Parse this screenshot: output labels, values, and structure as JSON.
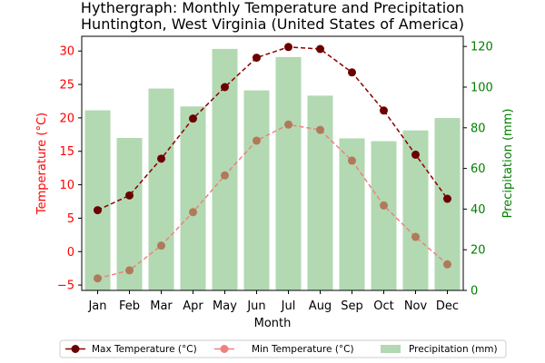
{
  "chart_data": {
    "type": "bar+line",
    "title_line1": "Hythergraph: Monthly Temperature and Precipitation",
    "title_line2": "Huntington, West Virginia (United States of America)",
    "xlabel": "Month",
    "ylabel_left": "Temperature (°C)",
    "ylabel_right": "Precipitation (mm)",
    "categories": [
      "Jan",
      "Feb",
      "Mar",
      "Apr",
      "May",
      "Jun",
      "Jul",
      "Aug",
      "Sep",
      "Oct",
      "Nov",
      "Dec"
    ],
    "ylim_left": [
      -5.8,
      32.2
    ],
    "ylim_right": [
      0,
      125
    ],
    "yticks_left": [
      -5,
      0,
      5,
      10,
      15,
      20,
      25,
      30
    ],
    "yticks_right": [
      0,
      20,
      40,
      60,
      80,
      100,
      120
    ],
    "series": [
      {
        "name": "Max Temperature (°C)",
        "type": "line",
        "axis": "left",
        "color": "#8b0000",
        "values": [
          6.2,
          8.4,
          13.9,
          19.9,
          24.6,
          29.0,
          30.6,
          30.3,
          26.8,
          21.1,
          14.5,
          7.9
        ]
      },
      {
        "name": "Min Temperature (°C)",
        "type": "line",
        "axis": "left",
        "color": "#f08080",
        "values": [
          -4.0,
          -2.8,
          0.9,
          5.9,
          11.4,
          16.6,
          19.0,
          18.2,
          13.6,
          6.9,
          2.2,
          -1.9
        ]
      },
      {
        "name": "Precipitation (mm)",
        "type": "bar",
        "axis": "right",
        "color": "#b2d9b2",
        "values": [
          88.6,
          75.0,
          99.3,
          90.5,
          118.8,
          98.4,
          114.8,
          95.8,
          74.8,
          73.4,
          78.7,
          84.8
        ]
      }
    ],
    "legend_position": "bottom"
  }
}
